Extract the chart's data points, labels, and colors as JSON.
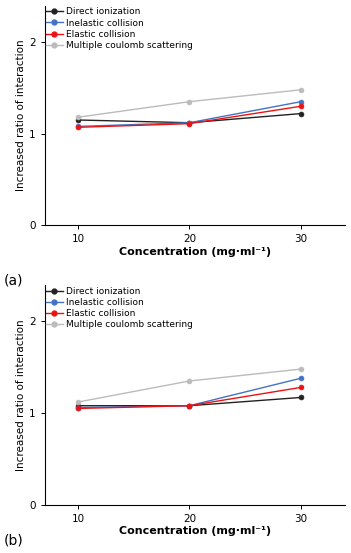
{
  "x": [
    10,
    20,
    30
  ],
  "panel_a": {
    "direct_ionization": [
      1.15,
      1.12,
      1.22
    ],
    "inelastic_collision": [
      1.08,
      1.12,
      1.35
    ],
    "elastic_collision": [
      1.07,
      1.11,
      1.3
    ],
    "multiple_coulomb": [
      1.18,
      1.35,
      1.48
    ]
  },
  "panel_b": {
    "direct_ionization": [
      1.08,
      1.08,
      1.17
    ],
    "inelastic_collision": [
      1.06,
      1.08,
      1.38
    ],
    "elastic_collision": [
      1.05,
      1.08,
      1.28
    ],
    "multiple_coulomb": [
      1.12,
      1.35,
      1.48
    ]
  },
  "colors": {
    "direct_ionization": "#222222",
    "inelastic_collision": "#4472C4",
    "elastic_collision": "#EE1111",
    "multiple_coulomb": "#BBBBBB"
  },
  "legend_labels": [
    "Direct ionization",
    "Inelastic collision",
    "Elastic collision",
    "Multiple coulomb scattering"
  ],
  "ylabel": "Increased ratio of interaction",
  "xlabel": "Concentration (mg·ml⁻¹)",
  "label_a": "(a)",
  "label_b": "(b)",
  "ylim": [
    0,
    2.4
  ],
  "yticks": [
    0,
    1,
    2
  ],
  "xticks": [
    10,
    20,
    30
  ],
  "figsize": [
    3.51,
    5.53
  ],
  "dpi": 100
}
